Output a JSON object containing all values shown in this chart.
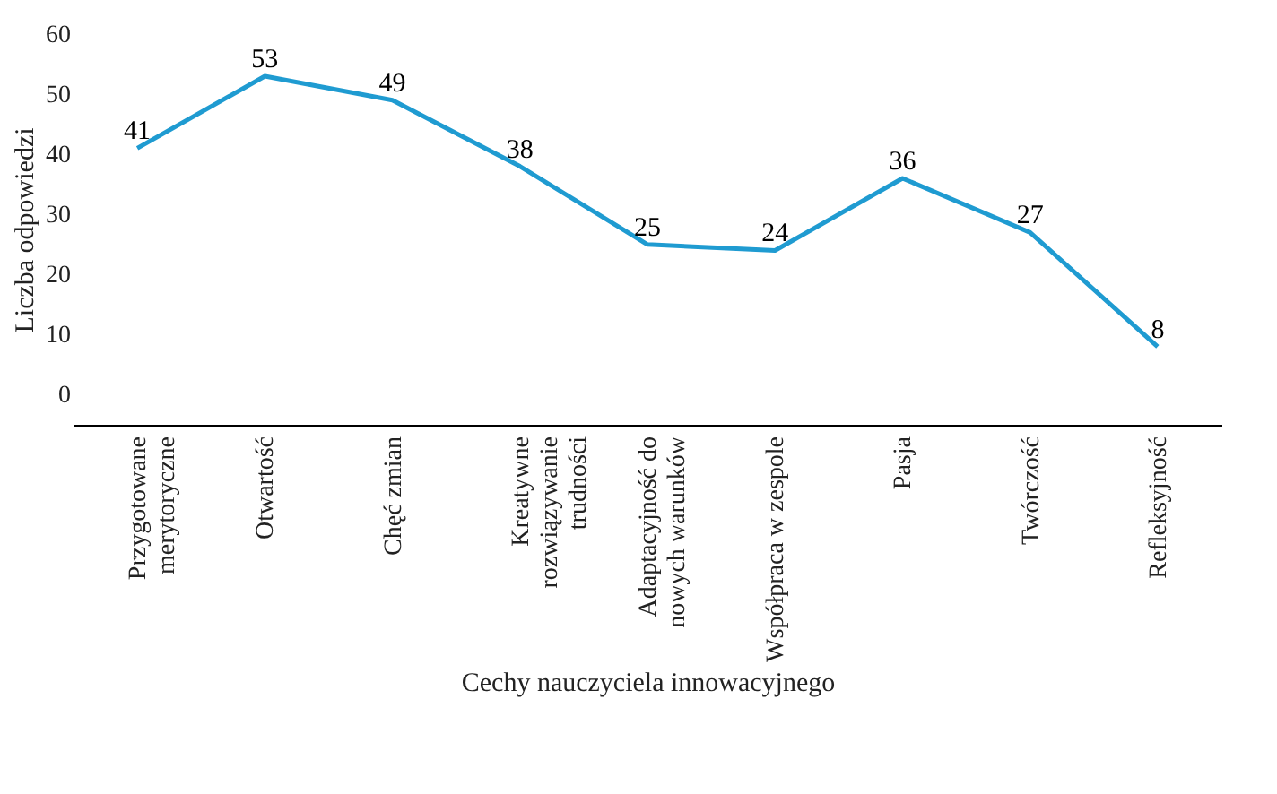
{
  "chart_data": {
    "type": "line",
    "xlabel": "Cechy nauczyciela innowacyjnego",
    "ylabel": "Liczba odpowiedzi",
    "categories": [
      "Przygotowane merytoryczne",
      "Otwartość",
      "Chęć zmian",
      "Kreatywne rozwiązywanie trudności",
      "Adaptacyjność do nowych warunków",
      "Współpraca w zespole",
      "Pasja",
      "Twórczość",
      "Refleksyjność"
    ],
    "series": [
      {
        "color": "#1f9bd1",
        "values": [
          41,
          53,
          49,
          38,
          25,
          24,
          36,
          27,
          8
        ]
      }
    ],
    "ylim": [
      -5,
      60
    ],
    "yticks": [
      0,
      10,
      20,
      30,
      40,
      50,
      60
    ],
    "data_labels": true,
    "grid": false,
    "legend": false,
    "marker": "none",
    "line_style": "solid"
  }
}
